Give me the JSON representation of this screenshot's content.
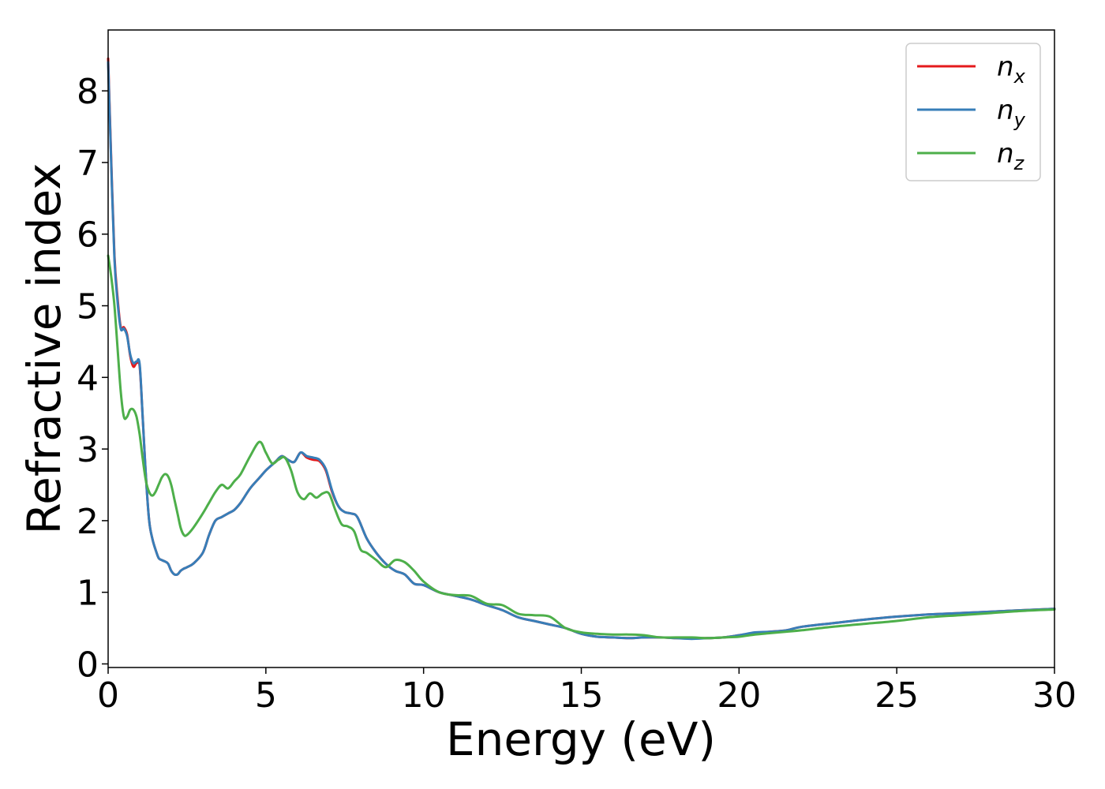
{
  "chart_data": {
    "type": "line",
    "xlabel": "Energy (eV)",
    "ylabel": "Refractive index",
    "xlim": [
      0,
      30
    ],
    "ylim": [
      -0.05,
      8.85
    ],
    "xticks": [
      "0",
      "5",
      "10",
      "15",
      "20",
      "25",
      "30"
    ],
    "yticks": [
      "0",
      "1",
      "2",
      "3",
      "4",
      "5",
      "6",
      "7",
      "8"
    ],
    "grid": false,
    "legend_position": "top-right",
    "series": [
      {
        "name": "n",
        "subscript": "x",
        "color": "#e41a1c",
        "x": [
          0,
          0.1,
          0.2,
          0.3,
          0.4,
          0.5,
          0.6,
          0.7,
          0.8,
          0.9,
          1.0,
          1.1,
          1.2,
          1.3,
          1.4,
          1.5,
          1.6,
          1.7,
          1.8,
          1.9,
          2.0,
          2.1,
          2.2,
          2.3,
          2.4,
          2.5,
          2.7,
          3.0,
          3.2,
          3.4,
          3.6,
          3.8,
          4.0,
          4.2,
          4.5,
          4.8,
          5.0,
          5.3,
          5.5,
          5.7,
          5.9,
          6.1,
          6.3,
          6.5,
          6.7,
          6.9,
          7.1,
          7.3,
          7.5,
          7.7,
          7.9,
          8.2,
          8.5,
          8.8,
          9.1,
          9.4,
          9.7,
          10.0,
          10.5,
          11.0,
          11.5,
          12.0,
          12.5,
          13.0,
          13.5,
          14.0,
          14.5,
          15.0,
          15.5,
          16.0,
          16.5,
          17.0,
          17.5,
          18.0,
          18.5,
          19.0,
          19.5,
          20.0,
          20.5,
          21.0,
          21.5,
          22.0,
          23.0,
          24.0,
          25.0,
          26.0,
          27.0,
          28.0,
          29.0,
          30.0
        ],
        "y": [
          8.45,
          7.0,
          5.7,
          5.1,
          4.7,
          4.7,
          4.6,
          4.3,
          4.15,
          4.2,
          4.15,
          3.4,
          2.6,
          2.0,
          1.75,
          1.6,
          1.48,
          1.45,
          1.43,
          1.4,
          1.3,
          1.25,
          1.25,
          1.3,
          1.33,
          1.35,
          1.4,
          1.55,
          1.8,
          2.0,
          2.05,
          2.1,
          2.15,
          2.25,
          2.45,
          2.6,
          2.7,
          2.82,
          2.9,
          2.85,
          2.82,
          2.95,
          2.88,
          2.85,
          2.83,
          2.7,
          2.4,
          2.2,
          2.12,
          2.1,
          2.05,
          1.75,
          1.55,
          1.4,
          1.3,
          1.25,
          1.12,
          1.1,
          1.0,
          0.95,
          0.9,
          0.82,
          0.75,
          0.65,
          0.6,
          0.55,
          0.5,
          0.42,
          0.38,
          0.37,
          0.36,
          0.37,
          0.37,
          0.36,
          0.36,
          0.36,
          0.37,
          0.4,
          0.43,
          0.45,
          0.47,
          0.52,
          0.57,
          0.62,
          0.66,
          0.69,
          0.71,
          0.73,
          0.75,
          0.77
        ]
      },
      {
        "name": "n",
        "subscript": "y",
        "color": "#377eb8",
        "x": [
          0,
          0.1,
          0.2,
          0.3,
          0.4,
          0.5,
          0.6,
          0.7,
          0.8,
          0.9,
          1.0,
          1.1,
          1.2,
          1.3,
          1.4,
          1.5,
          1.6,
          1.7,
          1.8,
          1.9,
          2.0,
          2.1,
          2.2,
          2.3,
          2.4,
          2.5,
          2.7,
          3.0,
          3.2,
          3.4,
          3.6,
          3.8,
          4.0,
          4.2,
          4.5,
          4.8,
          5.0,
          5.3,
          5.5,
          5.7,
          5.9,
          6.1,
          6.3,
          6.5,
          6.7,
          6.9,
          7.1,
          7.3,
          7.5,
          7.7,
          7.9,
          8.2,
          8.5,
          8.8,
          9.1,
          9.4,
          9.7,
          10.0,
          10.5,
          11.0,
          11.5,
          12.0,
          12.5,
          13.0,
          13.5,
          14.0,
          14.5,
          15.0,
          15.5,
          16.0,
          16.5,
          17.0,
          17.5,
          18.0,
          18.5,
          19.0,
          19.5,
          20.0,
          20.5,
          21.0,
          21.5,
          22.0,
          23.0,
          24.0,
          25.0,
          26.0,
          27.0,
          28.0,
          29.0,
          30.0
        ],
        "y": [
          8.4,
          6.95,
          5.65,
          5.05,
          4.68,
          4.68,
          4.58,
          4.32,
          4.2,
          4.22,
          4.18,
          3.4,
          2.6,
          2.0,
          1.75,
          1.6,
          1.48,
          1.45,
          1.43,
          1.4,
          1.3,
          1.25,
          1.25,
          1.3,
          1.33,
          1.35,
          1.4,
          1.55,
          1.8,
          2.0,
          2.05,
          2.1,
          2.15,
          2.25,
          2.45,
          2.6,
          2.7,
          2.82,
          2.9,
          2.85,
          2.82,
          2.95,
          2.9,
          2.88,
          2.85,
          2.72,
          2.42,
          2.2,
          2.12,
          2.1,
          2.05,
          1.75,
          1.55,
          1.4,
          1.3,
          1.25,
          1.12,
          1.1,
          1.0,
          0.95,
          0.9,
          0.82,
          0.75,
          0.65,
          0.6,
          0.55,
          0.5,
          0.42,
          0.38,
          0.37,
          0.36,
          0.37,
          0.37,
          0.36,
          0.35,
          0.36,
          0.37,
          0.4,
          0.44,
          0.45,
          0.47,
          0.52,
          0.57,
          0.62,
          0.66,
          0.69,
          0.71,
          0.73,
          0.75,
          0.77
        ]
      },
      {
        "name": "n",
        "subscript": "z",
        "color": "#4daf4a",
        "x": [
          0,
          0.1,
          0.2,
          0.3,
          0.4,
          0.5,
          0.6,
          0.7,
          0.8,
          0.9,
          1.0,
          1.1,
          1.2,
          1.3,
          1.4,
          1.5,
          1.6,
          1.7,
          1.8,
          1.9,
          2.0,
          2.1,
          2.2,
          2.3,
          2.4,
          2.5,
          2.7,
          3.0,
          3.2,
          3.4,
          3.6,
          3.8,
          4.0,
          4.2,
          4.5,
          4.8,
          5.0,
          5.2,
          5.4,
          5.6,
          5.8,
          6.0,
          6.2,
          6.4,
          6.6,
          6.8,
          7.0,
          7.2,
          7.4,
          7.6,
          7.8,
          8.0,
          8.2,
          8.5,
          8.8,
          9.1,
          9.4,
          9.7,
          10.0,
          10.5,
          11.0,
          11.5,
          12.0,
          12.5,
          13.0,
          13.5,
          14.0,
          14.5,
          15.0,
          15.5,
          16.0,
          16.5,
          17.0,
          17.5,
          18.0,
          18.5,
          19.0,
          19.5,
          20.0,
          20.5,
          21.0,
          21.5,
          22.0,
          23.0,
          24.0,
          25.0,
          26.0,
          27.0,
          28.0,
          29.0,
          30.0
        ],
        "y": [
          5.7,
          5.4,
          5.0,
          4.4,
          3.8,
          3.45,
          3.45,
          3.55,
          3.55,
          3.45,
          3.2,
          2.85,
          2.55,
          2.4,
          2.35,
          2.4,
          2.5,
          2.6,
          2.65,
          2.62,
          2.5,
          2.3,
          2.1,
          1.9,
          1.8,
          1.8,
          1.9,
          2.1,
          2.25,
          2.4,
          2.5,
          2.45,
          2.55,
          2.65,
          2.9,
          3.1,
          2.95,
          2.8,
          2.85,
          2.88,
          2.7,
          2.4,
          2.3,
          2.38,
          2.32,
          2.38,
          2.38,
          2.15,
          1.95,
          1.92,
          1.85,
          1.6,
          1.55,
          1.45,
          1.35,
          1.45,
          1.42,
          1.3,
          1.15,
          1.0,
          0.96,
          0.95,
          0.84,
          0.82,
          0.7,
          0.68,
          0.66,
          0.5,
          0.44,
          0.42,
          0.41,
          0.41,
          0.4,
          0.37,
          0.37,
          0.37,
          0.36,
          0.37,
          0.38,
          0.41,
          0.43,
          0.45,
          0.47,
          0.52,
          0.56,
          0.6,
          0.65,
          0.68,
          0.71,
          0.74,
          0.76
        ]
      }
    ]
  }
}
